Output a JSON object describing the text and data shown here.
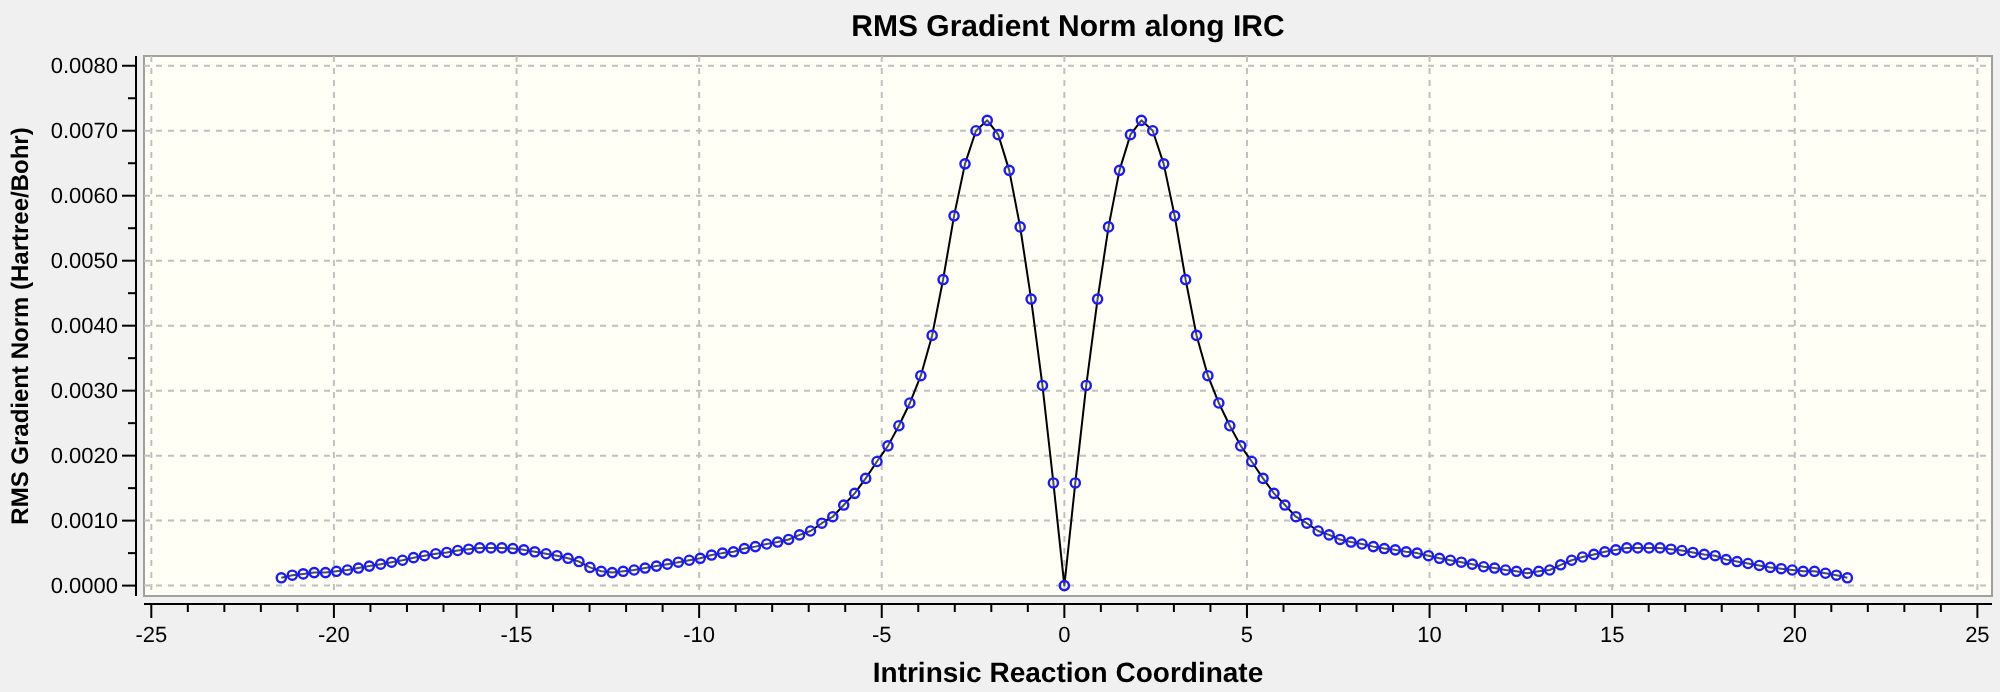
{
  "chart_data": {
    "type": "line",
    "title": "RMS Gradient Norm along IRC",
    "xlabel": "Intrinsic Reaction Coordinate",
    "ylabel": "RMS Gradient Norm (Hartree/Bohr)",
    "xlim": [
      -25.2,
      25.4
    ],
    "ylim": [
      -0.00016,
      0.00815
    ],
    "xticks": [
      -25,
      {
        "value": -24,
        "label": null
      },
      {
        "value": -23,
        "label": null
      },
      {
        "value": -22,
        "label": null
      },
      {
        "value": -21,
        "label": null
      },
      -20,
      {
        "value": -19,
        "label": null
      },
      {
        "value": -18,
        "label": null
      },
      {
        "value": -17,
        "label": null
      },
      {
        "value": -16,
        "label": null
      },
      -15,
      {
        "value": -14,
        "label": null
      },
      {
        "value": -13,
        "label": null
      },
      {
        "value": -12,
        "label": null
      },
      {
        "value": -11,
        "label": null
      },
      -10,
      {
        "value": -9,
        "label": null
      },
      {
        "value": -8,
        "label": null
      },
      {
        "value": -7,
        "label": null
      },
      {
        "value": -6,
        "label": null
      },
      -5,
      {
        "value": -4,
        "label": null
      },
      {
        "value": -3,
        "label": null
      },
      {
        "value": -2,
        "label": null
      },
      {
        "value": -1,
        "label": null
      },
      0,
      {
        "value": 1,
        "label": null
      },
      {
        "value": 2,
        "label": null
      },
      {
        "value": 3,
        "label": null
      },
      {
        "value": 4,
        "label": null
      },
      5,
      {
        "value": 6,
        "label": null
      },
      {
        "value": 7,
        "label": null
      },
      {
        "value": 8,
        "label": null
      },
      {
        "value": 9,
        "label": null
      },
      10,
      {
        "value": 11,
        "label": null
      },
      {
        "value": 12,
        "label": null
      },
      {
        "value": 13,
        "label": null
      },
      {
        "value": 14,
        "label": null
      },
      15,
      {
        "value": 16,
        "label": null
      },
      {
        "value": 17,
        "label": null
      },
      {
        "value": 18,
        "label": null
      },
      {
        "value": 19,
        "label": null
      },
      20,
      {
        "value": 21,
        "label": null
      },
      {
        "value": 22,
        "label": null
      },
      {
        "value": 23,
        "label": null
      },
      {
        "value": 24,
        "label": null
      },
      25
    ],
    "yticks": [
      {
        "value": 0,
        "label": "0.0000"
      },
      {
        "value": 0.0005,
        "label": null
      },
      {
        "value": 0.001,
        "label": "0.0010"
      },
      {
        "value": 0.0015,
        "label": null
      },
      {
        "value": 0.002,
        "label": "0.0020"
      },
      {
        "value": 0.0025,
        "label": null
      },
      {
        "value": 0.003,
        "label": "0.0030"
      },
      {
        "value": 0.0035,
        "label": null
      },
      {
        "value": 0.004,
        "label": "0.0040"
      },
      {
        "value": 0.0045,
        "label": null
      },
      {
        "value": 0.005,
        "label": "0.0050"
      },
      {
        "value": 0.0055,
        "label": null
      },
      {
        "value": 0.006,
        "label": "0.0060"
      },
      {
        "value": 0.0065,
        "label": null
      },
      {
        "value": 0.007,
        "label": "0.0070"
      },
      {
        "value": 0.0075,
        "label": null
      },
      {
        "value": 0.008,
        "label": "0.0080"
      }
    ],
    "grid": true,
    "marker": "circle",
    "line_style": "solid",
    "series": [
      {
        "color": "#1a1aff",
        "x": [
          -21.44,
          -21.14,
          -20.84,
          -20.54,
          -20.23,
          -19.93,
          -19.63,
          -19.33,
          -19.03,
          -18.72,
          -18.42,
          -18.12,
          -17.82,
          -17.52,
          -17.21,
          -16.91,
          -16.61,
          -16.31,
          -16.01,
          -15.7,
          -15.4,
          -15.1,
          -14.8,
          -14.5,
          -14.19,
          -13.89,
          -13.59,
          -13.29,
          -12.99,
          -12.68,
          -12.38,
          -12.08,
          -11.78,
          -11.48,
          -11.17,
          -10.87,
          -10.57,
          -10.27,
          -9.97,
          -9.66,
          -9.36,
          -9.06,
          -8.76,
          -8.46,
          -8.15,
          -7.85,
          -7.55,
          -7.25,
          -6.95,
          -6.64,
          -6.34,
          -6.04,
          -5.74,
          -5.44,
          -5.13,
          -4.83,
          -4.53,
          -4.23,
          -3.93,
          -3.62,
          -3.32,
          -3.02,
          -2.72,
          -2.42,
          -2.11,
          -1.81,
          -1.51,
          -1.21,
          -0.91,
          -0.6,
          -0.3,
          0,
          0.3,
          0.6,
          0.91,
          1.21,
          1.51,
          1.81,
          2.11,
          2.42,
          2.72,
          3.02,
          3.32,
          3.62,
          3.93,
          4.23,
          4.53,
          4.83,
          5.13,
          5.44,
          5.74,
          6.04,
          6.34,
          6.64,
          6.95,
          7.25,
          7.55,
          7.85,
          8.15,
          8.46,
          8.76,
          9.06,
          9.36,
          9.66,
          9.97,
          10.27,
          10.57,
          10.87,
          11.17,
          11.48,
          11.78,
          12.08,
          12.38,
          12.68,
          12.99,
          13.29,
          13.59,
          13.89,
          14.19,
          14.5,
          14.8,
          15.1,
          15.4,
          15.7,
          16.01,
          16.31,
          16.61,
          16.91,
          17.21,
          17.52,
          17.82,
          18.12,
          18.42,
          18.72,
          19.03,
          19.33,
          19.63,
          19.93,
          20.23,
          20.54,
          20.84,
          21.14,
          21.44
        ],
        "values": [
          0.00012,
          0.00016,
          0.00018,
          0.0002,
          0.0002,
          0.00022,
          0.00024,
          0.00027,
          0.0003,
          0.00033,
          0.00036,
          0.00039,
          0.00043,
          0.00046,
          0.00049,
          0.00051,
          0.00054,
          0.00056,
          0.00058,
          0.00058,
          0.00058,
          0.00057,
          0.00055,
          0.00052,
          0.00049,
          0.00046,
          0.00042,
          0.00037,
          0.00028,
          0.00022,
          0.0002,
          0.00022,
          0.00024,
          0.00027,
          0.0003,
          0.00033,
          0.00036,
          0.00039,
          0.00042,
          0.00047,
          0.0005,
          0.00052,
          0.00057,
          0.0006,
          0.00064,
          0.00067,
          0.00071,
          0.00078,
          0.00084,
          0.00096,
          0.00106,
          0.00124,
          0.00142,
          0.00165,
          0.00191,
          0.00215,
          0.00246,
          0.00281,
          0.00323,
          0.00385,
          0.00471,
          0.00569,
          0.00649,
          0.007,
          0.00716,
          0.00694,
          0.00639,
          0.00552,
          0.00441,
          0.00308,
          0.00158,
          0,
          0.00158,
          0.00308,
          0.00441,
          0.00552,
          0.00639,
          0.00694,
          0.00716,
          0.007,
          0.00649,
          0.00569,
          0.00471,
          0.00385,
          0.00323,
          0.00281,
          0.00246,
          0.00215,
          0.00191,
          0.00165,
          0.00142,
          0.00124,
          0.00106,
          0.00096,
          0.00084,
          0.00078,
          0.00071,
          0.00067,
          0.00064,
          0.0006,
          0.00057,
          0.00055,
          0.00052,
          0.0005,
          0.00046,
          0.00042,
          0.00039,
          0.00036,
          0.00033,
          0.00029,
          0.00027,
          0.00024,
          0.00022,
          0.00019,
          0.00022,
          0.00024,
          0.00032,
          0.00039,
          0.00044,
          0.00048,
          0.00052,
          0.00055,
          0.00058,
          0.00058,
          0.00058,
          0.00058,
          0.00056,
          0.00054,
          0.00051,
          0.00048,
          0.00046,
          0.0004,
          0.00037,
          0.00034,
          0.00031,
          0.00028,
          0.00026,
          0.00024,
          0.00022,
          0.00022,
          0.00019,
          0.00016,
          0.00012
        ]
      }
    ]
  }
}
